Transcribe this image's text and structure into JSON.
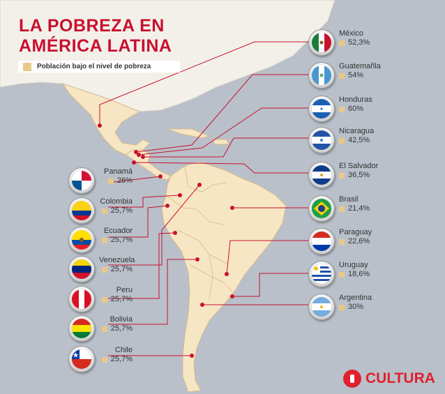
{
  "title": {
    "line1": "LA POBREZA EN",
    "line2": "AMÉRICA LATINA"
  },
  "legend": {
    "label": "Población bajo el nivel de pobreza",
    "color": "#e9c98a"
  },
  "colors": {
    "land": "#f7e6c4",
    "sea": "#b9c0c9",
    "accent": "#c8102e",
    "north": "#f3f0ea"
  },
  "countries": [
    {
      "name": "México",
      "value": "52,3%"
    },
    {
      "name": "Guatemañla",
      "value": "54%"
    },
    {
      "name": "Honduras",
      "value": "60%"
    },
    {
      "name": "Nicaragua",
      "value": "42,5%"
    },
    {
      "name": "El Salvador",
      "value": "36,5%"
    },
    {
      "name": "Brasil",
      "value": "21,4%"
    },
    {
      "name": "Paraguay",
      "value": "22,6%"
    },
    {
      "name": "Uruguay",
      "value": "18,6%"
    },
    {
      "name": "Argentina",
      "value": "30%"
    },
    {
      "name": "Panamá",
      "value": "26%"
    },
    {
      "name": "Colombia",
      "value": "25,7%"
    },
    {
      "name": "Ecuador",
      "value": "25,7%"
    },
    {
      "name": "Venezuela",
      "value": "25,7%"
    },
    {
      "name": "Peru",
      "value": "25,7%"
    },
    {
      "name": "Bolivia",
      "value": "25,7%"
    },
    {
      "name": "Chile",
      "value": "25,7%"
    }
  ],
  "logo": {
    "text": "CULTURA"
  }
}
